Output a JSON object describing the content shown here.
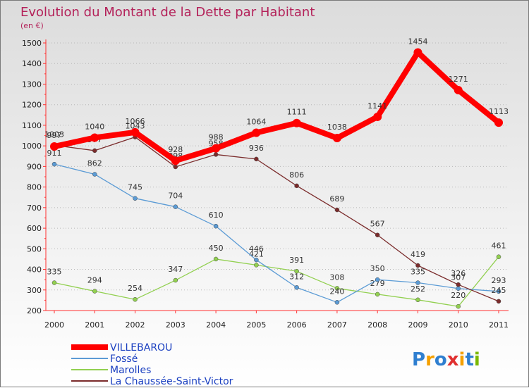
{
  "chart_data": {
    "type": "line",
    "title": "Evolution du Montant de la Dette par Habitant",
    "subtitle": "(en €)",
    "x": [
      "2000",
      "2001",
      "2002",
      "2003",
      "2004",
      "2005",
      "2006",
      "2007",
      "2008",
      "2009",
      "2010",
      "2011"
    ],
    "ylim": [
      200,
      1500
    ],
    "yticks": [
      200,
      300,
      400,
      500,
      600,
      700,
      800,
      900,
      1000,
      1100,
      1200,
      1300,
      1400,
      1500
    ],
    "grid": "horizontal-dotted",
    "legend_position": "bottom-left",
    "series": [
      {
        "name": "VILLEBAROU",
        "color": "#ff0000",
        "values": [
          997,
          1040,
          1066,
          928,
          988,
          1064,
          1111,
          1038,
          1141,
          1454,
          1271,
          1113
        ]
      },
      {
        "name": "Fossé",
        "color": "#5b9bd5",
        "values": [
          911,
          862,
          745,
          704,
          610,
          446,
          312,
          240,
          350,
          335,
          307,
          293
        ]
      },
      {
        "name": "Marolles",
        "color": "#92d050",
        "values": [
          335,
          294,
          254,
          347,
          450,
          421,
          391,
          308,
          279,
          252,
          220,
          461
        ]
      },
      {
        "name": "La Chaussée-Saint-Victor",
        "color": "#7b2c2c",
        "values": [
          1003,
          977,
          1043,
          898,
          958,
          936,
          806,
          689,
          567,
          419,
          326,
          245
        ]
      }
    ]
  },
  "logo": {
    "text": "Proxiti",
    "colors": [
      "#2f7fd0",
      "#f5a000",
      "#2f7fd0",
      "#e03030",
      "#f5a000",
      "#2f7fd0",
      "#7ab800"
    ]
  }
}
